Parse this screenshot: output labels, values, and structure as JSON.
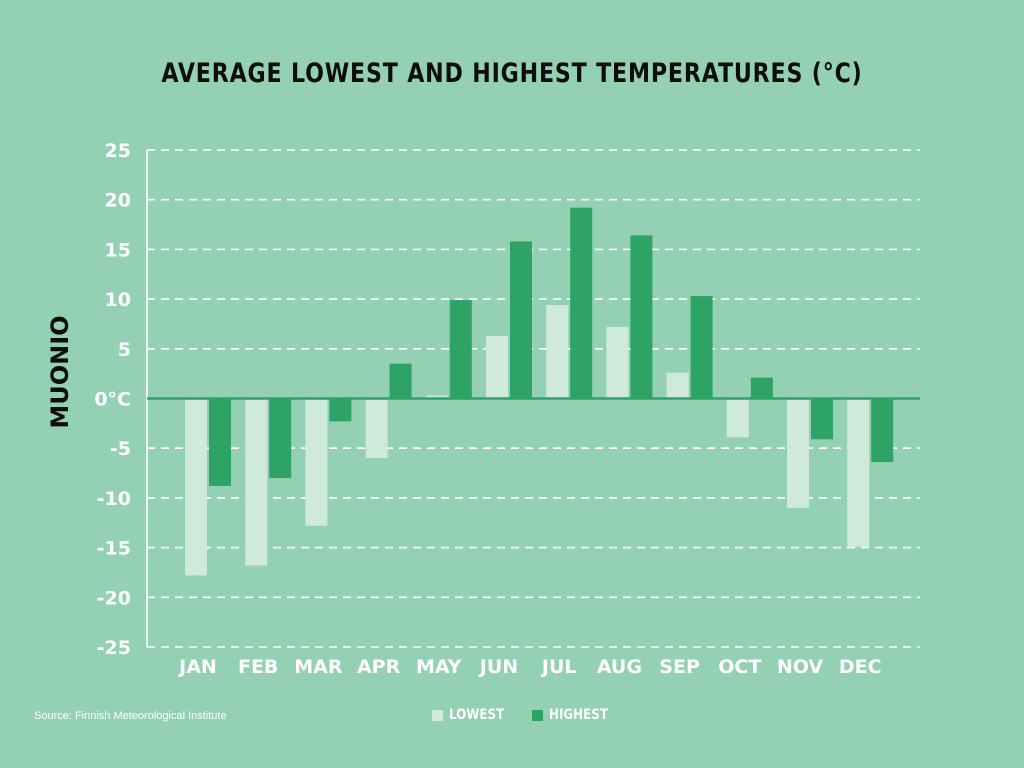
{
  "title": "AVERAGE LOWEST AND HIGHEST TEMPERATURES (°C)",
  "station": "MUONIO",
  "source": "Source: Finnish Meteorological Institute",
  "colors": {
    "background": "#94d0b3",
    "lowest": "#cfeadb",
    "highest": "#2ea366",
    "zero_line": "#2ea366",
    "grid": "#ffffff",
    "text_dark": "#0d0d0d",
    "text_light": "#ffffff"
  },
  "chart_data": {
    "type": "bar",
    "title": "AVERAGE LOWEST AND HIGHEST TEMPERATURES (°C)",
    "ylabel": "MUONIO",
    "xlabel": "",
    "categories": [
      "JAN",
      "FEB",
      "MAR",
      "APR",
      "MAY",
      "JUN",
      "JUL",
      "AUG",
      "SEP",
      "OCT",
      "NOV",
      "DEC"
    ],
    "series": [
      {
        "name": "LOWEST",
        "values": [
          -17.8,
          -16.8,
          -12.8,
          -6.0,
          0.3,
          6.3,
          9.4,
          7.2,
          2.6,
          -3.9,
          -11.0,
          -14.9
        ]
      },
      {
        "name": "HIGHEST",
        "values": [
          -8.8,
          -8.0,
          -2.3,
          3.5,
          9.9,
          15.8,
          19.2,
          16.4,
          10.3,
          2.1,
          -4.1,
          -6.4
        ]
      }
    ],
    "ylim": [
      -25,
      25
    ],
    "yticks": [
      25,
      20,
      15,
      10,
      5,
      0,
      -5,
      -10,
      -15,
      -20,
      -25
    ],
    "ytick_labels": [
      "25",
      "20",
      "15",
      "10",
      "5",
      "0°C",
      "-5",
      "-10",
      "-15",
      "-20",
      "-25"
    ],
    "grid": true,
    "grid_style": "dashed",
    "legend_position": "bottom-center"
  }
}
